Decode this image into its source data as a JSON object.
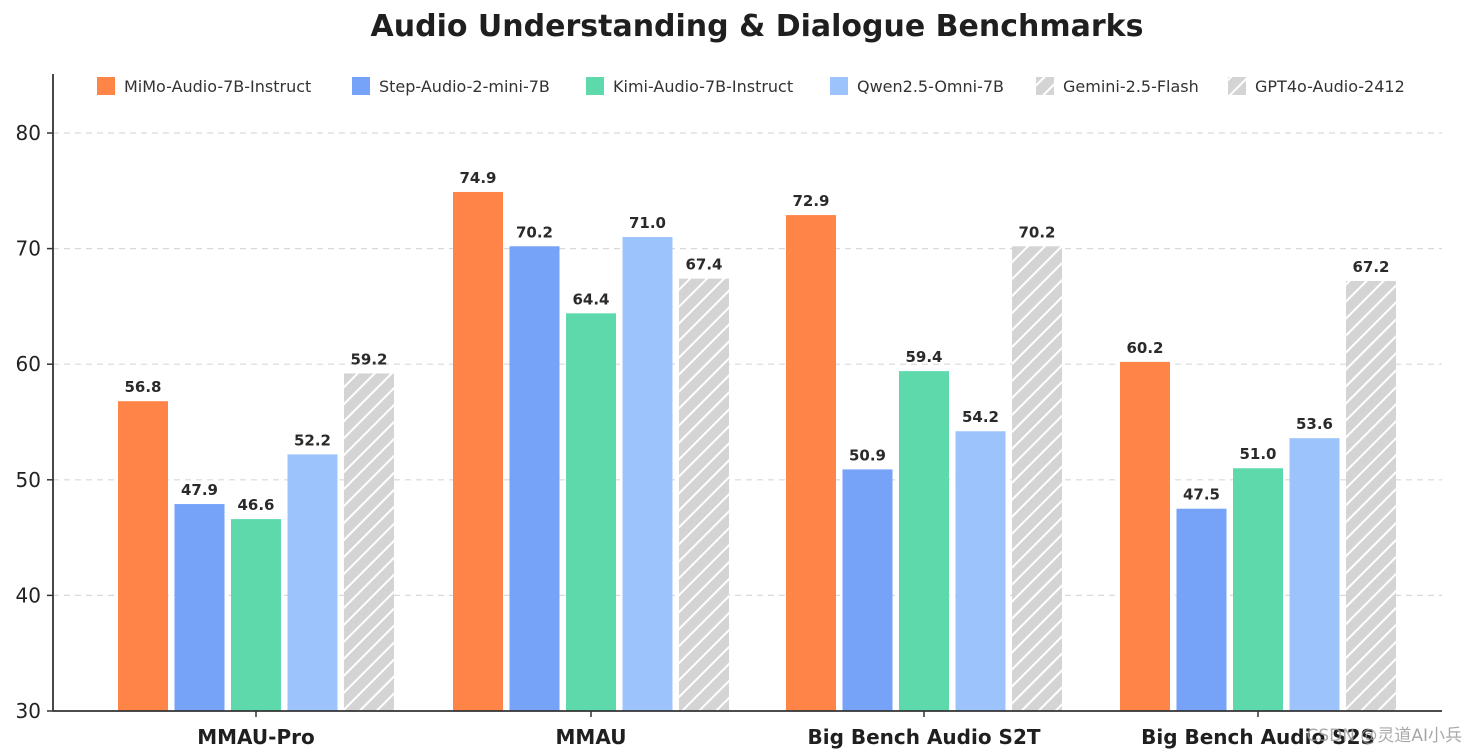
{
  "watermark": "CSDN @灵道AI小兵",
  "chart_data": {
    "type": "bar",
    "title": "Audio Understanding & Dialogue Benchmarks",
    "xlabel": "",
    "ylabel": "",
    "ylim": [
      30,
      85
    ],
    "yticks": [
      30,
      40,
      50,
      60,
      70,
      80
    ],
    "grid": true,
    "legend_position": "top",
    "categories": [
      "MMAU-Pro",
      "MMAU",
      "Big Bench Audio S2T",
      "Big Bench Audio S2S"
    ],
    "series": [
      {
        "name": "MiMo-Audio-7B-Instruct",
        "color": "#FF8448",
        "hatched": false,
        "values": [
          56.8,
          74.9,
          72.9,
          60.2
        ]
      },
      {
        "name": "Step-Audio-2-mini-7B",
        "color": "#76A2F8",
        "hatched": false,
        "values": [
          47.9,
          70.2,
          50.9,
          47.5
        ]
      },
      {
        "name": "Kimi-Audio-7B-Instruct",
        "color": "#5DD9AC",
        "hatched": false,
        "values": [
          46.6,
          64.4,
          59.4,
          51.0
        ]
      },
      {
        "name": "Qwen2.5-Omni-7B",
        "color": "#9CC3FC",
        "hatched": false,
        "values": [
          52.2,
          71.0,
          54.2,
          53.6
        ]
      },
      {
        "name": "Gemini-2.5-Flash",
        "color": "#D4D4D4",
        "hatched": true,
        "values": [
          null,
          null,
          70.2,
          67.2
        ]
      },
      {
        "name": "GPT4o-Audio-2412",
        "color": "#D4D4D4",
        "hatched": true,
        "values": [
          59.2,
          67.4,
          null,
          null
        ]
      }
    ]
  }
}
